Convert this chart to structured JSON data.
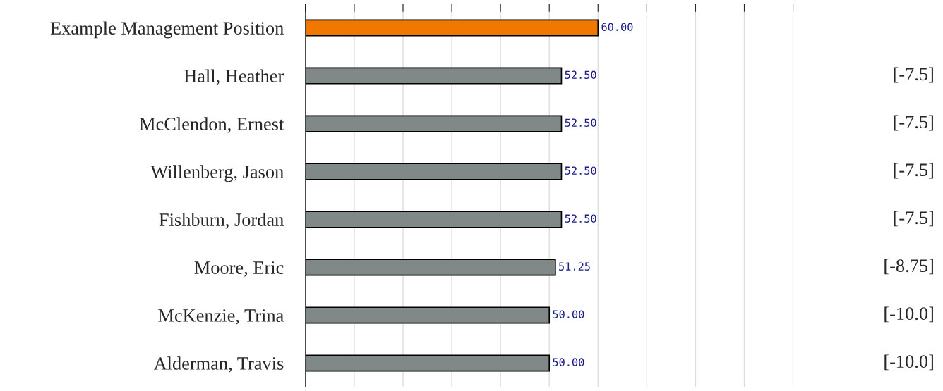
{
  "chart_data": {
    "type": "bar",
    "orientation": "horizontal",
    "categories": [
      "Example Management Position",
      "Hall, Heather",
      "McClendon, Ernest",
      "Willenberg, Jason",
      "Fishburn, Jordan",
      "Moore, Eric",
      "McKenzie, Trina",
      "Alderman, Travis"
    ],
    "values": [
      60,
      52.5,
      52.5,
      52.5,
      52.5,
      51.25,
      50,
      50
    ],
    "colors": [
      "#f07800",
      "#808888",
      "#808888",
      "#808888",
      "#808888",
      "#808888",
      "#808888",
      "#808888"
    ],
    "value_labels": [
      "60.00",
      "52.50",
      "52.50",
      "52.50",
      "52.50",
      "51.25",
      "50.00",
      "50.00"
    ],
    "xlim": [
      0,
      100
    ],
    "xticks": [
      {
        "value": 0,
        "label": null
      },
      {
        "value": 10,
        "label": null
      },
      {
        "value": 20,
        "label": null
      },
      {
        "value": 30,
        "label": null
      },
      {
        "value": 40,
        "label": null
      },
      {
        "value": 50,
        "label": null
      },
      {
        "value": 60,
        "label": null
      },
      {
        "value": 70,
        "label": null
      },
      {
        "value": 80,
        "label": null
      },
      {
        "value": 90,
        "label": null
      },
      {
        "value": 100,
        "label": null
      }
    ],
    "tick_labels": "y",
    "grid": "x",
    "annotations": [
      "[-7.5]",
      "[-7.5]",
      "[-7.5]",
      "[-7.5]",
      "[-8.75]",
      "[-10.0]",
      "[-10.0]"
    ]
  }
}
